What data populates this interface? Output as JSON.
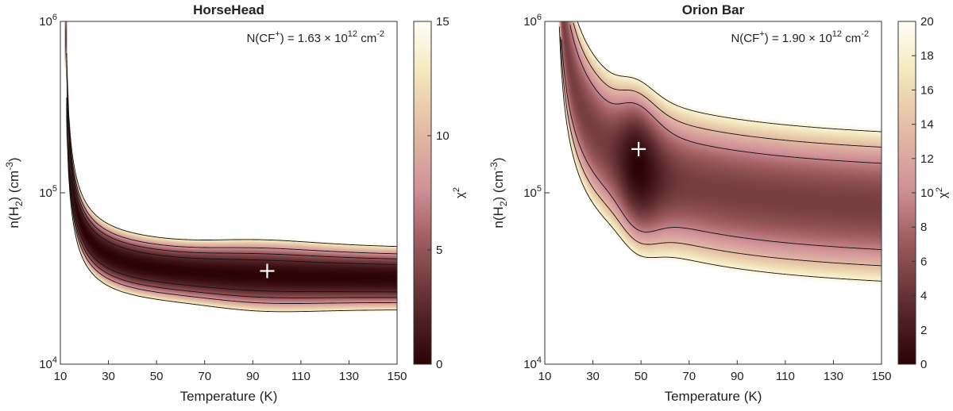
{
  "chart_data": [
    {
      "type": "heatmap",
      "title": "HorseHead",
      "xlabel": "Temperature (K)",
      "ylabel": "n(H2) (cm-3)",
      "ylabel_parts": {
        "base": "n(H",
        "sub": "2",
        "mid": ") (cm",
        "sup": "-3",
        "end": ")"
      },
      "xlim": [
        10,
        150
      ],
      "ylim": [
        10000,
        1000000
      ],
      "yscale": "log",
      "x_ticks": [
        10,
        30,
        50,
        70,
        90,
        110,
        130,
        150
      ],
      "y_ticks": [
        {
          "value": 10000,
          "base": "10",
          "exp": "4"
        },
        {
          "value": 100000,
          "base": "10",
          "exp": "5"
        },
        {
          "value": 1000000,
          "base": "10",
          "exp": "6"
        }
      ],
      "annotation": {
        "prefix": "N(CF",
        "sup": "+",
        "middle": ") = 1.63 × 10",
        "exp": "12",
        "unit": " cm",
        "unit_exp": "-2"
      },
      "best_fit": {
        "T": 96,
        "n": 35000
      },
      "valley_curve": {
        "n0": 30000,
        "a": 240000,
        "T0": 12
      },
      "chi2_width": 3.2,
      "chi2_floor": 0,
      "flat_min": 0.25,
      "colorbar": {
        "label": "χ",
        "label_sup": "2",
        "min": 0,
        "max": 15,
        "ticks": [
          0,
          5,
          10,
          15
        ]
      },
      "contour_levels": [
        2.5,
        5,
        8,
        13.5
      ]
    },
    {
      "type": "heatmap",
      "title": "Orion Bar",
      "xlabel": "Temperature (K)",
      "ylabel": "n(H2) (cm-3)",
      "ylabel_parts": {
        "base": "n(H",
        "sub": "2",
        "mid": ") (cm",
        "sup": "-3",
        "end": ")"
      },
      "xlim": [
        10,
        150
      ],
      "ylim": [
        10000,
        1000000
      ],
      "yscale": "log",
      "x_ticks": [
        10,
        30,
        50,
        70,
        90,
        110,
        130,
        150
      ],
      "y_ticks": [
        {
          "value": 10000,
          "base": "10",
          "exp": "4"
        },
        {
          "value": 100000,
          "base": "10",
          "exp": "5"
        },
        {
          "value": 1000000,
          "base": "10",
          "exp": "6"
        }
      ],
      "annotation": {
        "prefix": "N(CF",
        "sup": "+",
        "middle": ") = 1.90 × 10",
        "exp": "12",
        "unit": " cm",
        "unit_exp": "-2"
      },
      "best_fit": {
        "T": 49,
        "n": 180000
      },
      "valley_curve": {
        "n0": 64000,
        "a": 2600000,
        "T0": 15
      },
      "chi2_width": 0.55,
      "chi2_floor": 5,
      "flat_min": 0,
      "colorbar": {
        "label": "χ",
        "label_sup": "2",
        "min": 0,
        "max": 20,
        "ticks": [
          0,
          2,
          4,
          6,
          8,
          10,
          12,
          14,
          16,
          18,
          20
        ]
      },
      "contour_levels": [
        9.5,
        13.5,
        18.5
      ]
    }
  ]
}
